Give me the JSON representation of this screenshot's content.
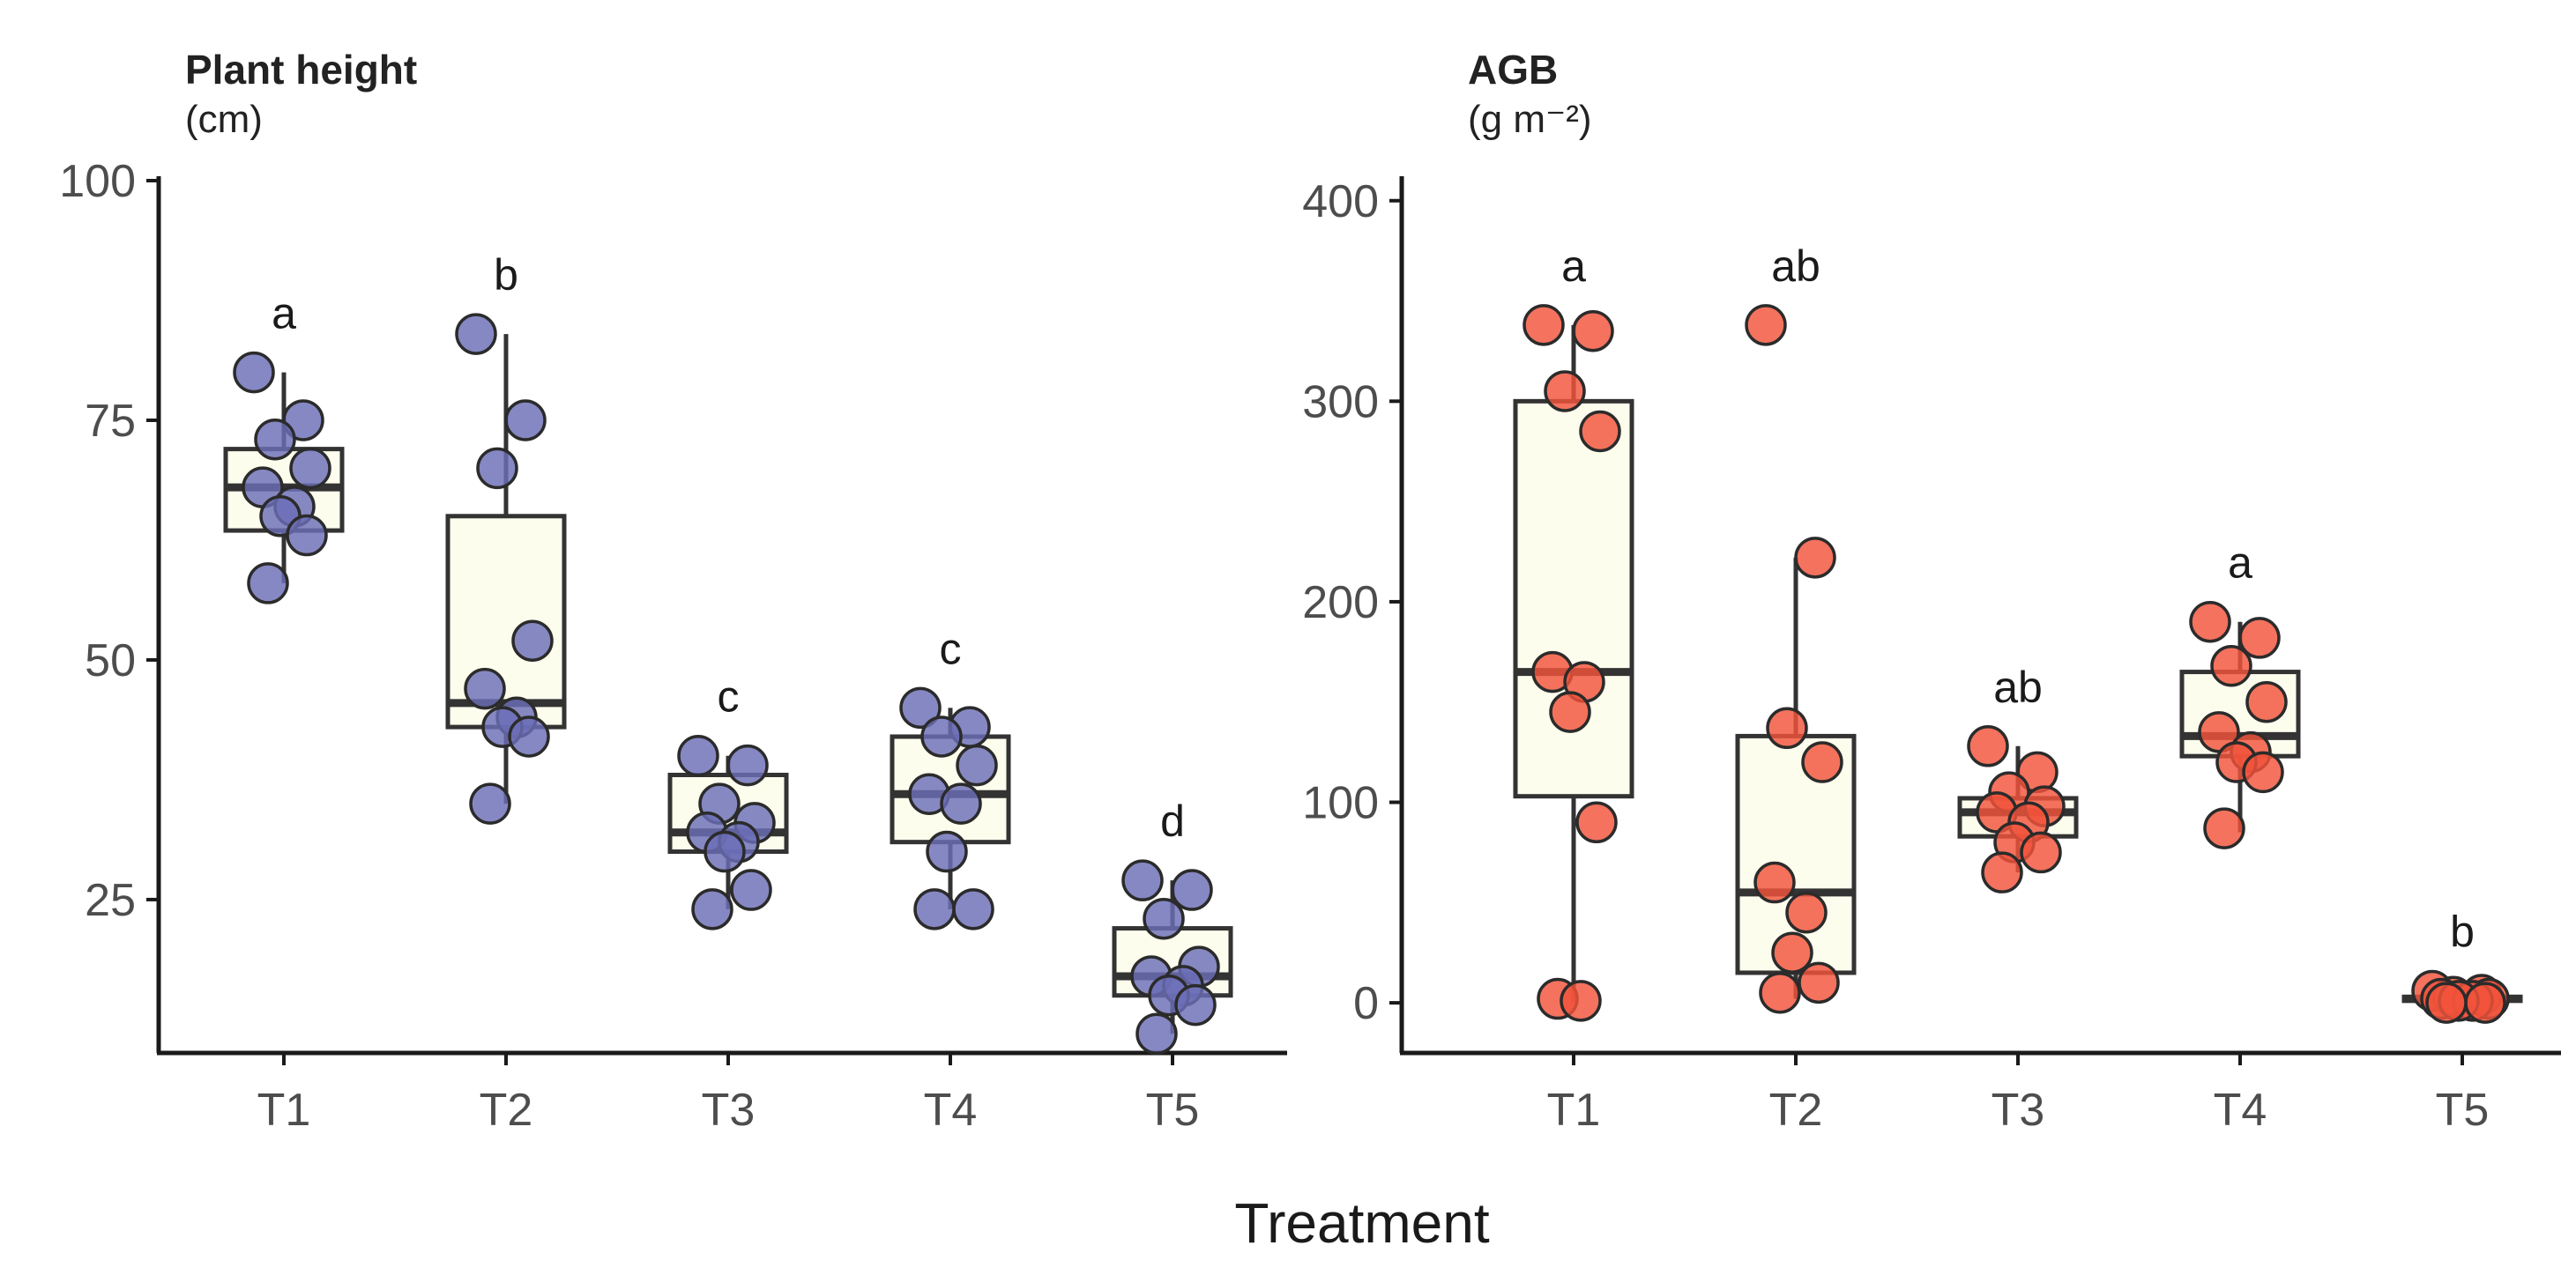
{
  "figure": {
    "xlabel": "Treatment"
  },
  "chart_data": [
    {
      "type": "box",
      "title": "Plant height",
      "unit": "(cm)",
      "ylim": [
        9,
        100
      ],
      "yticks": [
        25,
        50,
        75,
        100
      ],
      "categories": [
        "T1",
        "T2",
        "T3",
        "T4",
        "T5"
      ],
      "point_color": "#6b6eb7",
      "groups": [
        {
          "x": "T1",
          "letter": "a",
          "whisker_low": 58,
          "q1": 63.5,
          "median": 68,
          "q3": 72,
          "whisker_high": 80,
          "points": [
            80,
            75,
            73,
            70,
            68,
            66,
            65,
            63,
            58
          ]
        },
        {
          "x": "T2",
          "letter": "b",
          "whisker_low": 35,
          "q1": 43,
          "median": 45.5,
          "q3": 65,
          "whisker_high": 84,
          "points": [
            84,
            75,
            70,
            52,
            47,
            44,
            43,
            42,
            35
          ]
        },
        {
          "x": "T3",
          "letter": "c",
          "whisker_low": 24,
          "q1": 30,
          "median": 32,
          "q3": 38,
          "whisker_high": 40,
          "points": [
            40,
            39,
            35,
            33,
            32,
            31,
            30,
            26,
            24
          ]
        },
        {
          "x": "T4",
          "letter": "c",
          "whisker_low": 24,
          "q1": 31,
          "median": 36,
          "q3": 42,
          "whisker_high": 45,
          "points": [
            45,
            43,
            42,
            39,
            36,
            35,
            30,
            24,
            24
          ]
        },
        {
          "x": "T5",
          "letter": "d",
          "whisker_low": 11,
          "q1": 15,
          "median": 17,
          "q3": 22,
          "whisker_high": 27,
          "points": [
            27,
            26,
            23,
            18,
            17,
            16,
            15,
            14,
            11
          ]
        }
      ]
    },
    {
      "type": "box",
      "title": "AGB",
      "unit": "(g m⁻²)",
      "ylim": [
        -25,
        410
      ],
      "yticks": [
        0,
        100,
        200,
        300,
        400
      ],
      "categories": [
        "T1",
        "T2",
        "T3",
        "T4",
        "T5"
      ],
      "point_color": "#f2533a",
      "groups": [
        {
          "x": "T1",
          "letter": "a",
          "whisker_low": 0,
          "q1": 103,
          "median": 165,
          "q3": 300,
          "whisker_high": 338,
          "points": [
            338,
            335,
            305,
            285,
            165,
            160,
            145,
            90,
            2,
            1
          ]
        },
        {
          "x": "T2",
          "letter": "ab",
          "whisker_low": 2,
          "q1": 15,
          "median": 55,
          "q3": 133,
          "whisker_high": 222,
          "points": [
            338,
            222,
            137,
            120,
            60,
            45,
            25,
            10,
            5
          ]
        },
        {
          "x": "T3",
          "letter": "ab",
          "whisker_low": 65,
          "q1": 83,
          "median": 95,
          "q3": 102,
          "whisker_high": 128,
          "points": [
            128,
            115,
            105,
            98,
            95,
            90,
            80,
            75,
            65
          ]
        },
        {
          "x": "T4",
          "letter": "a",
          "whisker_low": 85,
          "q1": 123,
          "median": 133,
          "q3": 165,
          "whisker_high": 190,
          "points": [
            190,
            182,
            168,
            150,
            135,
            125,
            120,
            115,
            87
          ]
        },
        {
          "x": "T5",
          "letter": "b",
          "whisker_low": 0,
          "q1": 1,
          "median": 2,
          "q3": 3,
          "whisker_high": 6,
          "points": [
            6,
            4,
            3,
            2,
            2,
            1,
            1,
            0,
            0
          ]
        }
      ]
    }
  ]
}
